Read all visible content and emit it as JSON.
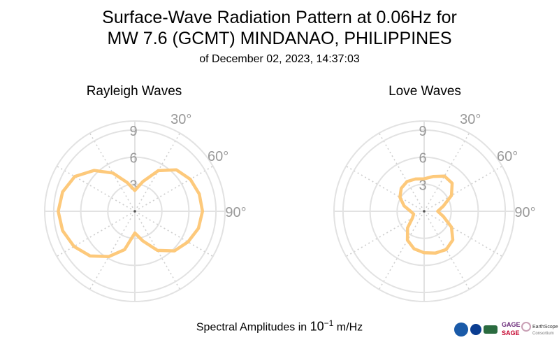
{
  "title_line1": "Surface-Wave Radiation Pattern at 0.06Hz for",
  "title_line2": "MW 7.6 (GCMT) MINDANAO, PHILIPPINES",
  "title_line3": "of December 02, 2023, 14:37:03",
  "footer_prefix": "Spectral Amplitudes in ",
  "footer_base": "10",
  "footer_exp": "−1",
  "footer_unit": " m/Hz",
  "colors": {
    "pattern": "#fdc97b",
    "grid": "#e2e2e2",
    "grid_dotted": "#cfcfcf",
    "label": "#999999"
  },
  "logos": {
    "gage": "GAGE",
    "sage": "SAGE",
    "consortium": "EarthScope",
    "consortium2": "Consortium"
  },
  "chart_data": [
    {
      "type": "polar-line",
      "title": "Rayleigh Waves",
      "r_ticks": [
        "3",
        "6",
        "9"
      ],
      "r_lim": [
        0,
        10
      ],
      "theta_tick_labels": [
        "30°",
        "60°",
        "90°"
      ],
      "theta_direction": "clockwise",
      "theta_zero": "north",
      "theta_deg": [
        0,
        15,
        30,
        45,
        60,
        75,
        90,
        105,
        120,
        135,
        150,
        165,
        180,
        195,
        210,
        225,
        240,
        255,
        270,
        285,
        300,
        315,
        330,
        345,
        360
      ],
      "r": [
        2.3,
        3.4,
        5.2,
        6.5,
        7.1,
        7.4,
        7.5,
        7.3,
        6.8,
        6.2,
        5.0,
        3.4,
        2.4,
        4.4,
        5.8,
        7.0,
        7.8,
        8.3,
        8.5,
        8.3,
        7.7,
        6.4,
        4.9,
        3.3,
        2.3
      ]
    },
    {
      "type": "polar-line",
      "title": "Love Waves",
      "r_ticks": [
        "3",
        "6",
        "9"
      ],
      "r_lim": [
        0,
        10
      ],
      "theta_tick_labels": [
        "30°",
        "60°",
        "90°"
      ],
      "theta_direction": "clockwise",
      "theta_zero": "north",
      "theta_deg": [
        0,
        15,
        30,
        45,
        60,
        75,
        90,
        105,
        120,
        135,
        150,
        165,
        180,
        195,
        210,
        225,
        240,
        255,
        270,
        285,
        300,
        315,
        330,
        345,
        360
      ],
      "r": [
        3.6,
        4.0,
        4.5,
        4.4,
        3.5,
        2.2,
        1.5,
        2.2,
        3.5,
        4.5,
        4.9,
        4.8,
        4.6,
        4.3,
        3.7,
        2.6,
        1.5,
        1.2,
        1.5,
        2.3,
        3.1,
        3.6,
        3.8,
        3.7,
        3.6
      ]
    }
  ]
}
